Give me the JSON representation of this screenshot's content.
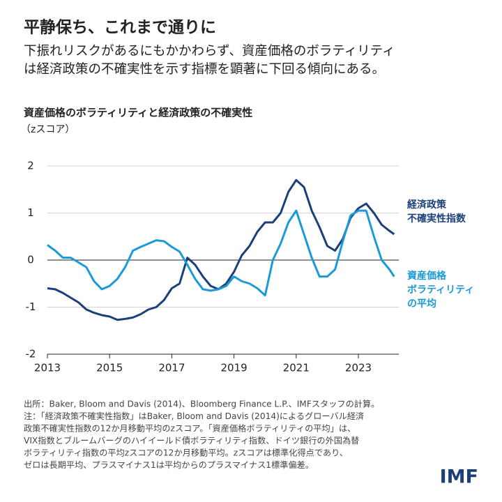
{
  "chart_data": {
    "type": "line",
    "title": "平静保ち、これまで通りに",
    "subtitle": [
      "下振れリスクがあるにもかかわらず、資産価格のボラティリティ",
      "は経済政策の不確実性を示す指標を顕著に下回る傾向にある。"
    ],
    "chart_title": "資産価格のボラティリティと経済政策の不確実性",
    "y_label": "（zスコア）",
    "x": [
      2013.0,
      2013.25,
      2013.5,
      2013.75,
      2014.0,
      2014.25,
      2014.5,
      2014.75,
      2015.0,
      2015.25,
      2015.5,
      2015.75,
      2016.0,
      2016.25,
      2016.5,
      2016.75,
      2017.0,
      2017.25,
      2017.5,
      2017.75,
      2018.0,
      2018.25,
      2018.5,
      2018.75,
      2019.0,
      2019.25,
      2019.5,
      2019.75,
      2020.0,
      2020.25,
      2020.5,
      2020.75,
      2021.0,
      2021.25,
      2021.5,
      2021.75,
      2022.0,
      2022.25,
      2022.5,
      2022.75,
      2023.0,
      2023.25,
      2023.5,
      2023.75,
      2024.0,
      2024.15
    ],
    "series": [
      {
        "name": "経済政策\n不確実性指数",
        "color": "#1c3f7c",
        "values": [
          -0.6,
          -0.62,
          -0.7,
          -0.8,
          -0.9,
          -1.05,
          -1.12,
          -1.17,
          -1.2,
          -1.27,
          -1.25,
          -1.22,
          -1.15,
          -1.05,
          -1.0,
          -0.85,
          -0.6,
          -0.5,
          0.05,
          -0.1,
          -0.35,
          -0.55,
          -0.62,
          -0.5,
          -0.25,
          0.1,
          0.3,
          0.6,
          0.8,
          0.8,
          1.0,
          1.45,
          1.7,
          1.55,
          1.05,
          0.7,
          0.3,
          0.2,
          0.45,
          0.9,
          1.1,
          1.2,
          1.0,
          0.75,
          0.62,
          0.55
        ]
      },
      {
        "name": "資産価格\nボラティリティ\nの平均",
        "color": "#1b9ad7",
        "values": [
          0.32,
          0.2,
          0.05,
          0.05,
          -0.05,
          -0.15,
          -0.45,
          -0.62,
          -0.55,
          -0.4,
          -0.15,
          0.2,
          0.28,
          0.35,
          0.42,
          0.4,
          0.28,
          0.18,
          -0.1,
          -0.4,
          -0.62,
          -0.65,
          -0.62,
          -0.55,
          -0.35,
          -0.45,
          -0.5,
          -0.6,
          -0.75,
          0.0,
          0.35,
          0.8,
          1.05,
          0.55,
          0.05,
          -0.35,
          -0.35,
          -0.2,
          0.4,
          0.95,
          1.05,
          1.05,
          0.5,
          0.0,
          -0.2,
          -0.35
        ]
      }
    ],
    "xlim": [
      2013,
      2024.3
    ],
    "xticks": [
      2013,
      2015,
      2017,
      2019,
      2021,
      2023
    ],
    "ylim": [
      -2,
      2
    ],
    "yticks": [
      -2,
      -1,
      0,
      1,
      2
    ],
    "grid": true,
    "notes": [
      "出所：Baker, Bloom and Davis (2014)、Bloomberg Finance L.P.、IMFスタッフの計算。",
      "注：「経済政策不確実性指数」はBaker, Bloom and Davis (2014)によるグローバル経済",
      "政策不確実性指数の12か月移動平均のzスコア。「資産価格ボラティリティの平均」は、",
      "VIX指数とブルームバーグのハイイールド債ボラティリティ指数、ドイツ銀行の外国為替",
      "ボラティリティ指数の平均zスコアの12か月移動平均。zスコアは標準化得点であり、",
      "ゼロは長期平均、プラスマイナス1は平均からのプラスマイナス1標準偏差。"
    ],
    "logo": "IMF"
  }
}
